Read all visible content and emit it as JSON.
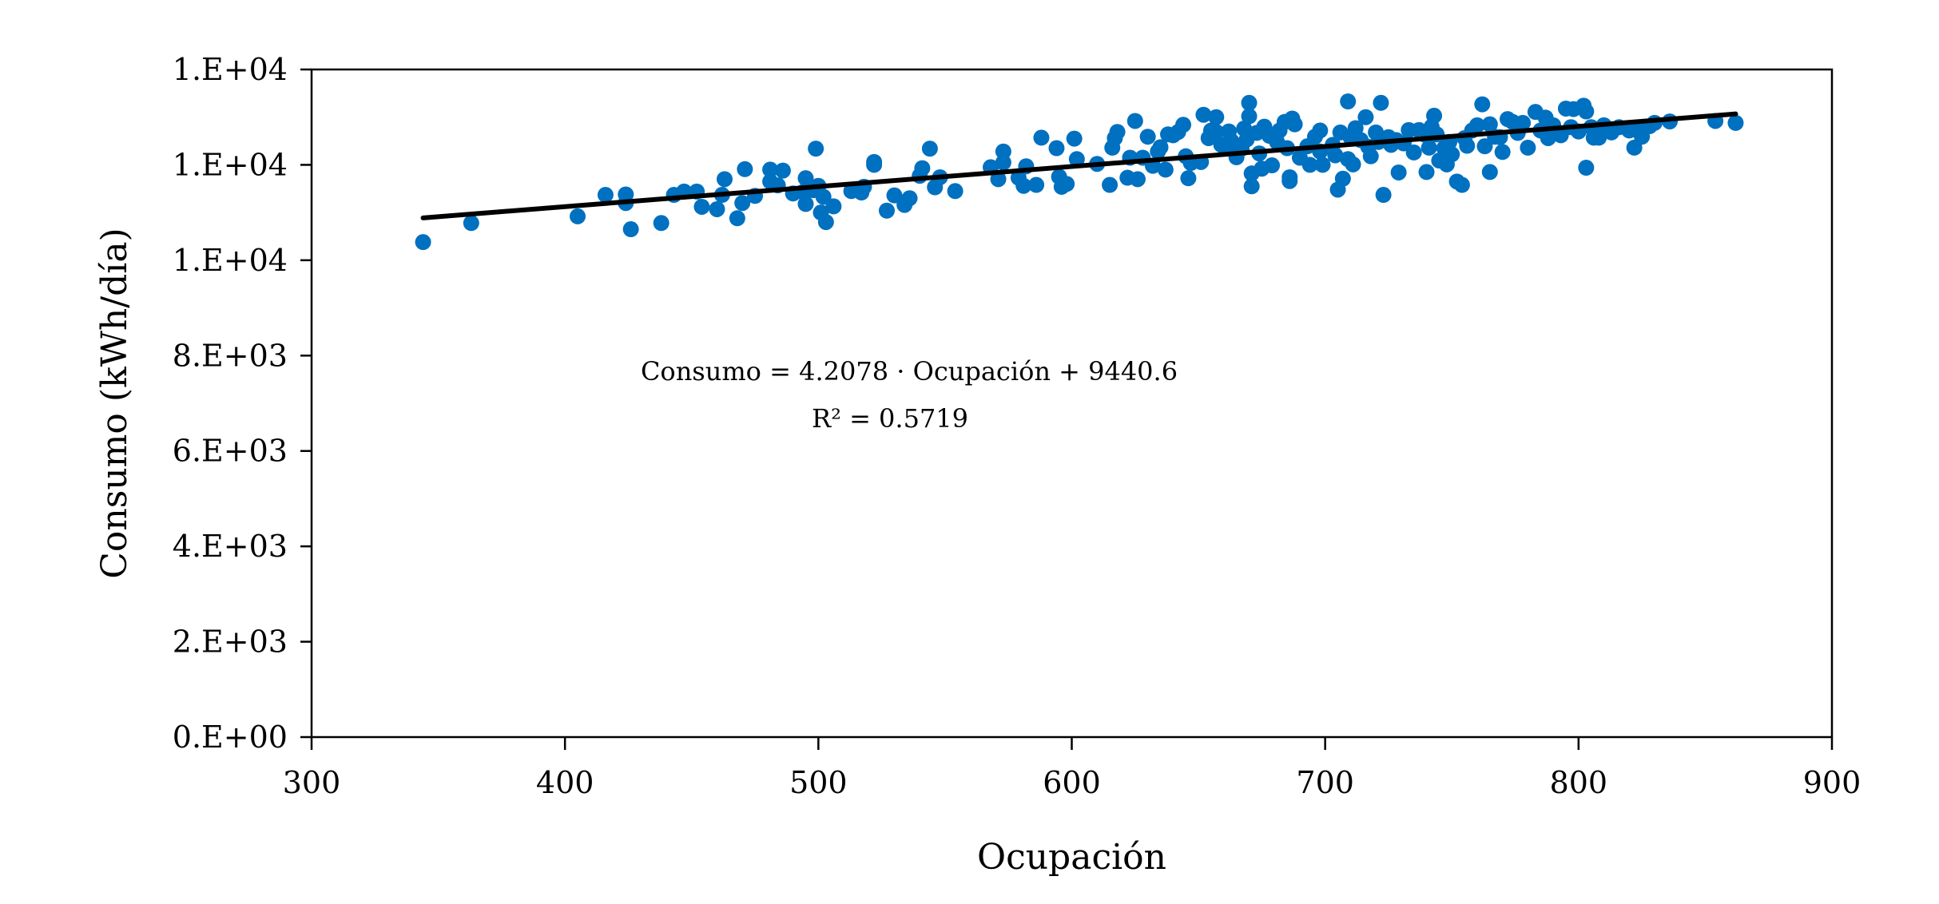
{
  "chart_data": {
    "type": "scatter",
    "title": "",
    "xlabel": "Ocupación",
    "ylabel": "Consumo (kWh/día)",
    "xlim": [
      300,
      900
    ],
    "ylim": [
      0,
      14000
    ],
    "x_ticks": [
      300,
      400,
      500,
      600,
      700,
      800,
      900
    ],
    "x_tick_labels": [
      "300",
      "400",
      "500",
      "600",
      "700",
      "800",
      "900"
    ],
    "y_ticks": [
      0,
      2000,
      4000,
      6000,
      8000,
      10000,
      12000,
      14000
    ],
    "y_tick_labels": [
      "0.E+00",
      "2.E+03",
      "4.E+03",
      "6.E+03",
      "8.E+03",
      "1.E+04",
      "1.E+04",
      "1.E+04"
    ],
    "grid": false,
    "legend": "none",
    "series": [
      {
        "name": "Consumo",
        "color": "#0070C0",
        "points": [
          [
            344,
            10380
          ],
          [
            363,
            10780
          ],
          [
            405,
            10920
          ],
          [
            416,
            11370
          ],
          [
            424,
            11200
          ],
          [
            424,
            11380
          ],
          [
            426,
            10650
          ],
          [
            438,
            10780
          ],
          [
            443,
            11370
          ],
          [
            447,
            11440
          ],
          [
            452,
            11440
          ],
          [
            454,
            11120
          ],
          [
            460,
            11070
          ],
          [
            462,
            11370
          ],
          [
            463,
            11700
          ],
          [
            468,
            10880
          ],
          [
            470,
            11200
          ],
          [
            471,
            11910
          ],
          [
            475,
            11350
          ],
          [
            481,
            11900
          ],
          [
            481,
            11650
          ],
          [
            484,
            11570
          ],
          [
            486,
            11880
          ],
          [
            490,
            11400
          ],
          [
            494,
            11430
          ],
          [
            495,
            11180
          ],
          [
            495,
            11720
          ],
          [
            498,
            11470
          ],
          [
            499,
            12340
          ],
          [
            500,
            11560
          ],
          [
            501,
            11000
          ],
          [
            502,
            11330
          ],
          [
            503,
            10800
          ],
          [
            506,
            11130
          ],
          [
            513,
            11450
          ],
          [
            517,
            11420
          ],
          [
            518,
            11540
          ],
          [
            522,
            12000
          ],
          [
            522,
            12060
          ],
          [
            527,
            11040
          ],
          [
            530,
            11360
          ],
          [
            534,
            11160
          ],
          [
            536,
            11300
          ],
          [
            540,
            11770
          ],
          [
            541,
            11930
          ],
          [
            544,
            12340
          ],
          [
            546,
            11530
          ],
          [
            548,
            11740
          ],
          [
            554,
            11450
          ],
          [
            568,
            11950
          ],
          [
            571,
            11700
          ],
          [
            573,
            12050
          ],
          [
            573,
            12280
          ],
          [
            579,
            11730
          ],
          [
            581,
            11560
          ],
          [
            582,
            11970
          ],
          [
            586,
            11580
          ],
          [
            588,
            12570
          ],
          [
            594,
            12350
          ],
          [
            595,
            11750
          ],
          [
            596,
            11540
          ],
          [
            598,
            11600
          ],
          [
            601,
            12550
          ],
          [
            602,
            12120
          ],
          [
            610,
            12020
          ],
          [
            615,
            11580
          ],
          [
            616,
            12360
          ],
          [
            617,
            12560
          ],
          [
            618,
            12690
          ],
          [
            622,
            11730
          ],
          [
            623,
            12150
          ],
          [
            625,
            12920
          ],
          [
            626,
            11700
          ],
          [
            628,
            12150
          ],
          [
            630,
            12590
          ],
          [
            632,
            11980
          ],
          [
            634,
            12280
          ],
          [
            635,
            12370
          ],
          [
            637,
            11900
          ],
          [
            638,
            12640
          ],
          [
            640,
            12620
          ],
          [
            642,
            12690
          ],
          [
            644,
            12840
          ],
          [
            645,
            12180
          ],
          [
            646,
            11720
          ],
          [
            647,
            12040
          ],
          [
            651,
            12060
          ],
          [
            652,
            13050
          ],
          [
            654,
            12560
          ],
          [
            655,
            12720
          ],
          [
            657,
            12690
          ],
          [
            657,
            13000
          ],
          [
            659,
            12420
          ],
          [
            661,
            12340
          ],
          [
            662,
            12700
          ],
          [
            663,
            12500
          ],
          [
            665,
            12160
          ],
          [
            667,
            12340
          ],
          [
            668,
            12760
          ],
          [
            669,
            12530
          ],
          [
            670,
            13020
          ],
          [
            670,
            13300
          ],
          [
            671,
            11820
          ],
          [
            671,
            11550
          ],
          [
            673,
            12670
          ],
          [
            674,
            12240
          ],
          [
            675,
            11920
          ],
          [
            676,
            12800
          ],
          [
            678,
            12610
          ],
          [
            679,
            11990
          ],
          [
            681,
            12480
          ],
          [
            682,
            12720
          ],
          [
            684,
            12900
          ],
          [
            685,
            12350
          ],
          [
            686,
            11660
          ],
          [
            686,
            11740
          ],
          [
            687,
            12970
          ],
          [
            688,
            12850
          ],
          [
            690,
            12150
          ],
          [
            693,
            12390
          ],
          [
            694,
            12000
          ],
          [
            696,
            12590
          ],
          [
            698,
            12280
          ],
          [
            698,
            12720
          ],
          [
            699,
            12000
          ],
          [
            703,
            12420
          ],
          [
            704,
            12200
          ],
          [
            705,
            11480
          ],
          [
            706,
            12680
          ],
          [
            707,
            11710
          ],
          [
            709,
            12120
          ],
          [
            709,
            13330
          ],
          [
            710,
            12580
          ],
          [
            711,
            12010
          ],
          [
            712,
            12770
          ],
          [
            714,
            12520
          ],
          [
            716,
            13000
          ],
          [
            717,
            12380
          ],
          [
            718,
            12180
          ],
          [
            720,
            12680
          ],
          [
            721,
            12480
          ],
          [
            722,
            13300
          ],
          [
            723,
            11370
          ],
          [
            725,
            12580
          ],
          [
            726,
            12420
          ],
          [
            728,
            12520
          ],
          [
            729,
            11840
          ],
          [
            731,
            12450
          ],
          [
            733,
            12730
          ],
          [
            735,
            12260
          ],
          [
            737,
            12730
          ],
          [
            739,
            12640
          ],
          [
            740,
            11850
          ],
          [
            741,
            12360
          ],
          [
            742,
            12800
          ],
          [
            743,
            13030
          ],
          [
            744,
            12640
          ],
          [
            745,
            12090
          ],
          [
            747,
            12350
          ],
          [
            748,
            12010
          ],
          [
            749,
            12480
          ],
          [
            750,
            12220
          ],
          [
            752,
            11650
          ],
          [
            754,
            11580
          ],
          [
            755,
            12560
          ],
          [
            756,
            12400
          ],
          [
            758,
            12720
          ],
          [
            760,
            12830
          ],
          [
            762,
            13270
          ],
          [
            763,
            12390
          ],
          [
            765,
            12850
          ],
          [
            765,
            11850
          ],
          [
            767,
            12590
          ],
          [
            769,
            12580
          ],
          [
            770,
            12270
          ],
          [
            772,
            12960
          ],
          [
            774,
            12900
          ],
          [
            776,
            12670
          ],
          [
            778,
            12880
          ],
          [
            780,
            12360
          ],
          [
            783,
            13110
          ],
          [
            785,
            12720
          ],
          [
            787,
            12990
          ],
          [
            788,
            12560
          ],
          [
            790,
            12830
          ],
          [
            793,
            12620
          ],
          [
            795,
            13180
          ],
          [
            797,
            12790
          ],
          [
            798,
            13170
          ],
          [
            800,
            12700
          ],
          [
            802,
            13240
          ],
          [
            803,
            13120
          ],
          [
            803,
            11940
          ],
          [
            805,
            12790
          ],
          [
            806,
            12570
          ],
          [
            808,
            12570
          ],
          [
            810,
            12830
          ],
          [
            813,
            12680
          ],
          [
            816,
            12790
          ],
          [
            820,
            12720
          ],
          [
            822,
            12360
          ],
          [
            823,
            12730
          ],
          [
            825,
            12590
          ],
          [
            828,
            12810
          ],
          [
            830,
            12880
          ],
          [
            836,
            12910
          ],
          [
            854,
            12920
          ],
          [
            862,
            12880
          ]
        ]
      }
    ],
    "trendline": {
      "type": "linear",
      "slope": 4.2078,
      "intercept": 9440.6,
      "x_range": [
        344,
        862
      ],
      "color": "#000000",
      "equation_label": "Consumo = 4.2078 · Ocupación + 9440.6",
      "r2_label": "R² = 0.5719"
    }
  }
}
